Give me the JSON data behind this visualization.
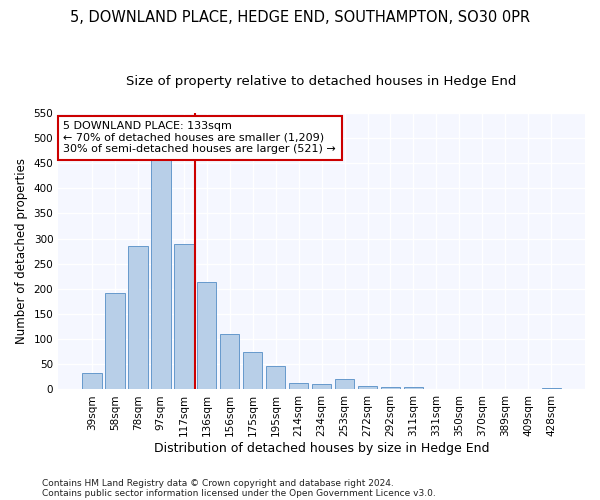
{
  "title1": "5, DOWNLAND PLACE, HEDGE END, SOUTHAMPTON, SO30 0PR",
  "title2": "Size of property relative to detached houses in Hedge End",
  "xlabel": "Distribution of detached houses by size in Hedge End",
  "ylabel": "Number of detached properties",
  "categories": [
    "39sqm",
    "58sqm",
    "78sqm",
    "97sqm",
    "117sqm",
    "136sqm",
    "156sqm",
    "175sqm",
    "195sqm",
    "214sqm",
    "234sqm",
    "253sqm",
    "272sqm",
    "292sqm",
    "311sqm",
    "331sqm",
    "350sqm",
    "370sqm",
    "389sqm",
    "409sqm",
    "428sqm"
  ],
  "values": [
    32,
    192,
    285,
    457,
    290,
    213,
    111,
    75,
    47,
    12,
    11,
    20,
    7,
    5,
    4,
    0,
    0,
    0,
    0,
    0,
    3
  ],
  "bar_color": "#b8cfe8",
  "bar_edge_color": "#6699cc",
  "vline_x": 5,
  "vline_color": "#cc0000",
  "annotation_text": "5 DOWNLAND PLACE: 133sqm\n← 70% of detached houses are smaller (1,209)\n30% of semi-detached houses are larger (521) →",
  "annotation_box_color": "#ffffff",
  "annotation_box_edge_color": "#cc0000",
  "ylim": [
    0,
    550
  ],
  "yticks": [
    0,
    50,
    100,
    150,
    200,
    250,
    300,
    350,
    400,
    450,
    500,
    550
  ],
  "footnote1": "Contains HM Land Registry data © Crown copyright and database right 2024.",
  "footnote2": "Contains public sector information licensed under the Open Government Licence v3.0.",
  "bg_color": "#ffffff",
  "plot_bg_color": "#f5f7ff",
  "title1_fontsize": 10.5,
  "title2_fontsize": 9.5,
  "xlabel_fontsize": 9,
  "ylabel_fontsize": 8.5,
  "tick_fontsize": 7.5,
  "annotation_fontsize": 8,
  "footnote_fontsize": 6.5
}
